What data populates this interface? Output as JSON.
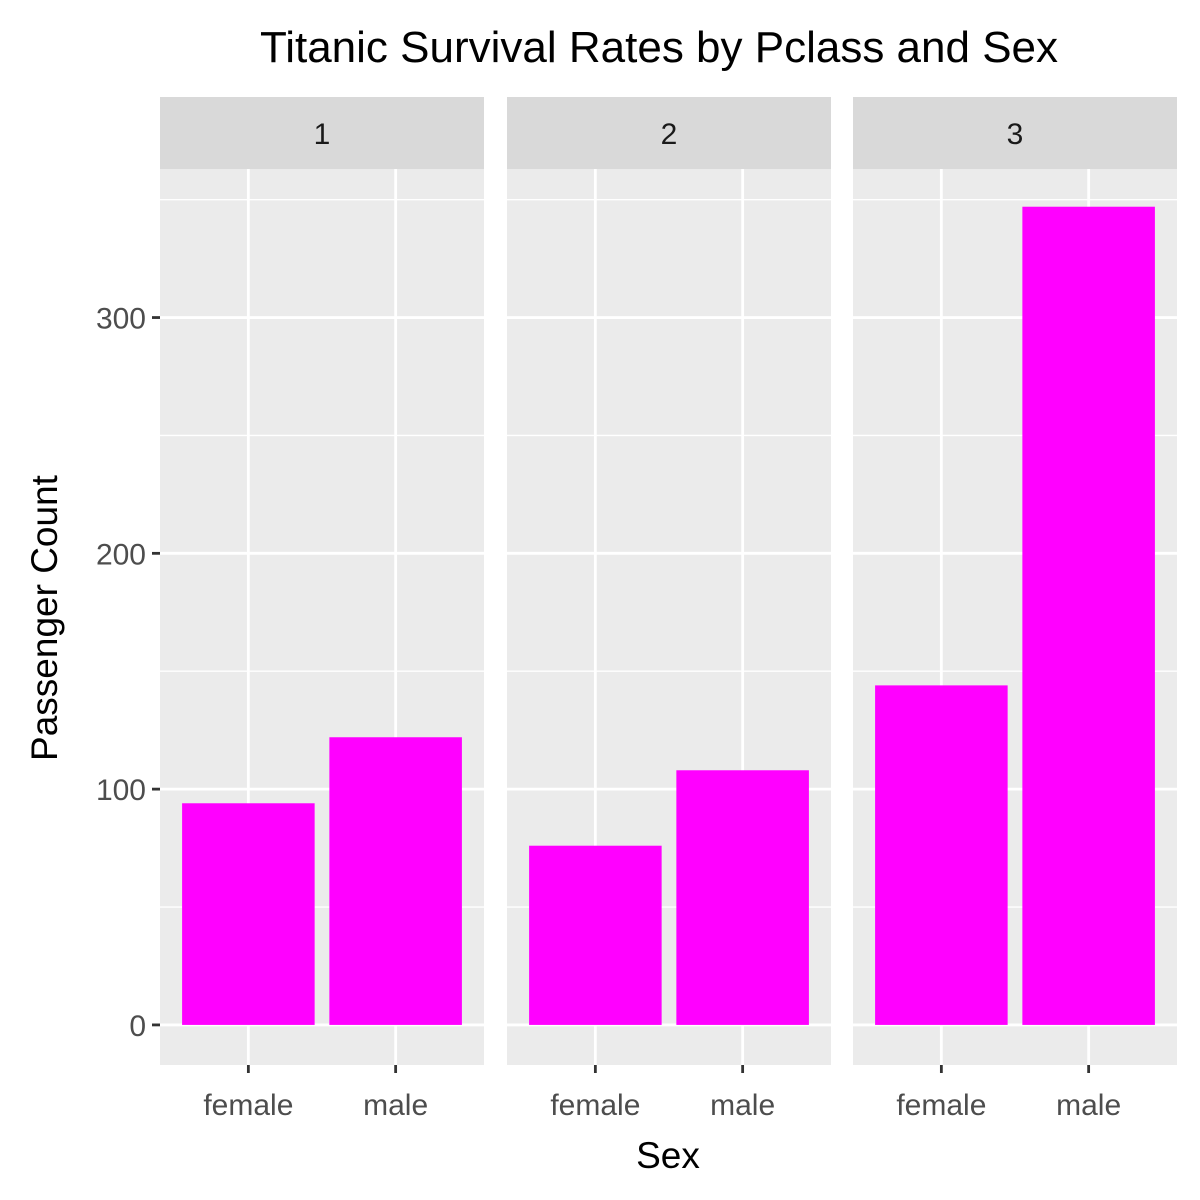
{
  "chart_data": {
    "type": "bar",
    "title": "Titanic Survival Rates by Pclass and Sex",
    "xlabel": "Sex",
    "ylabel": "Passenger Count",
    "facet_variable": "Pclass",
    "facets": [
      "1",
      "2",
      "3"
    ],
    "categories": [
      "female",
      "male"
    ],
    "series": [
      {
        "facet": "1",
        "values": [
          94,
          122
        ]
      },
      {
        "facet": "2",
        "values": [
          76,
          108
        ]
      },
      {
        "facet": "3",
        "values": [
          144,
          347
        ]
      }
    ],
    "ylim": [
      -17,
      363
    ],
    "y_ticks": [
      0,
      100,
      200,
      300
    ],
    "y_tick_labels": [
      "0",
      "100",
      "200",
      "300"
    ],
    "grid": true,
    "legend": "none",
    "colors": {
      "bar": "#ff00ff",
      "panel_background": "#ebebeb",
      "strip_background": "#d9d9d9",
      "grid": "#ffffff",
      "tick": "#333333"
    }
  }
}
